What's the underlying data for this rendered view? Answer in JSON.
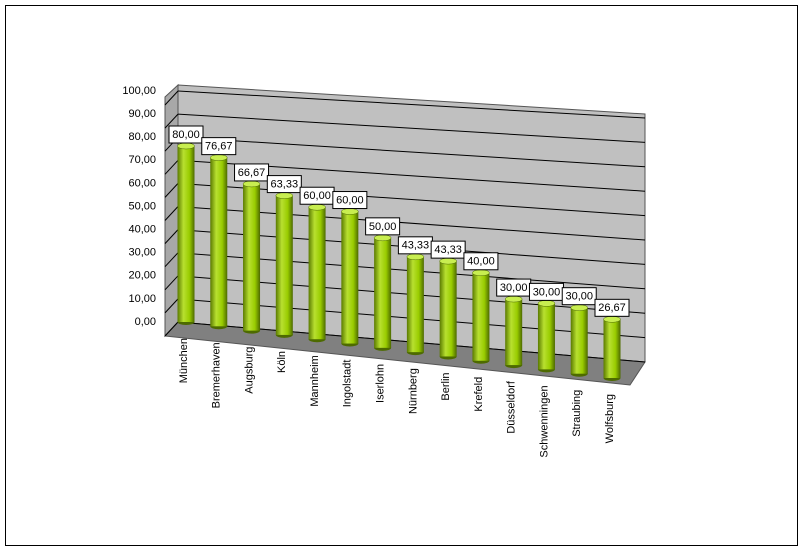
{
  "chart_data": {
    "type": "bar",
    "categories": [
      "München",
      "Bremerhaven",
      "Augsburg",
      "Köln",
      "Mannheim",
      "Ingolstadt",
      "Iserlohn",
      "Nürnberg",
      "Berlin",
      "Krefeld",
      "Düsseldorf",
      "Schwenningen",
      "Straubing",
      "Wolfsburg"
    ],
    "values": [
      80,
      76.67,
      66.67,
      63.33,
      60,
      60,
      50,
      43.33,
      43.33,
      40,
      30,
      30,
      30,
      26.67
    ],
    "value_labels": [
      "80,00",
      "76,67",
      "66,67",
      "63,33",
      "60,00",
      "60,00",
      "50,00",
      "43,33",
      "43,33",
      "40,00",
      "30,00",
      "30,00",
      "30,00",
      "26,67"
    ],
    "color": "#99cc00",
    "ylim": [
      0,
      100
    ],
    "yticks": [
      {
        "value": 0,
        "label": "0,00"
      },
      {
        "value": 10,
        "label": "10,00"
      },
      {
        "value": 20,
        "label": "20,00"
      },
      {
        "value": 30,
        "label": "30,00"
      },
      {
        "value": 40,
        "label": "40,00"
      },
      {
        "value": 50,
        "label": "50,00"
      },
      {
        "value": 60,
        "label": "60,00"
      },
      {
        "value": 70,
        "label": "70,00"
      },
      {
        "value": 80,
        "label": "80,00"
      },
      {
        "value": 90,
        "label": "90,00"
      },
      {
        "value": 100,
        "label": "100,00"
      }
    ],
    "grid": true
  }
}
